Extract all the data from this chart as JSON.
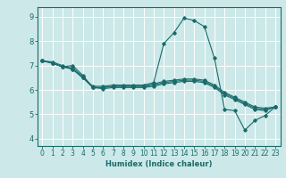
{
  "title": "",
  "xlabel": "Humidex (Indice chaleur)",
  "ylabel": "",
  "xlim": [
    -0.5,
    23.5
  ],
  "ylim": [
    3.7,
    9.4
  ],
  "bg_color": "#cce8e8",
  "line_color": "#1a6b6b",
  "grid_color": "#ffffff",
  "xticks": [
    0,
    1,
    2,
    3,
    4,
    5,
    6,
    7,
    8,
    9,
    10,
    11,
    12,
    13,
    14,
    15,
    16,
    17,
    18,
    19,
    20,
    21,
    22,
    23
  ],
  "yticks": [
    4,
    5,
    6,
    7,
    8,
    9
  ],
  "lines": [
    {
      "x": [
        0,
        1,
        2,
        3,
        4,
        5,
        6,
        7,
        8,
        9,
        10,
        11,
        12,
        13,
        14,
        15,
        16,
        17,
        18,
        19,
        20,
        21,
        22,
        23
      ],
      "y": [
        7.2,
        7.15,
        7.0,
        6.85,
        6.5,
        6.15,
        6.15,
        6.2,
        6.2,
        6.2,
        6.2,
        6.3,
        7.9,
        8.35,
        8.95,
        8.85,
        8.6,
        7.3,
        5.2,
        5.15,
        4.35,
        4.75,
        4.95,
        5.3
      ]
    },
    {
      "x": [
        0,
        1,
        2,
        3,
        4,
        5,
        6,
        7,
        8,
        9,
        10,
        11,
        12,
        13,
        14,
        15,
        16,
        17,
        18,
        19,
        20,
        21,
        22,
        23
      ],
      "y": [
        7.2,
        7.1,
        6.95,
        7.0,
        6.6,
        6.1,
        6.1,
        6.15,
        6.15,
        6.15,
        6.15,
        6.25,
        6.35,
        6.4,
        6.45,
        6.45,
        6.4,
        6.2,
        5.9,
        5.7,
        5.5,
        5.3,
        5.25,
        5.3
      ]
    },
    {
      "x": [
        0,
        1,
        2,
        3,
        4,
        5,
        6,
        7,
        8,
        9,
        10,
        11,
        12,
        13,
        14,
        15,
        16,
        17,
        18,
        19,
        20,
        21,
        22,
        23
      ],
      "y": [
        7.2,
        7.1,
        6.95,
        6.9,
        6.55,
        6.1,
        6.1,
        6.15,
        6.15,
        6.15,
        6.15,
        6.2,
        6.3,
        6.35,
        6.4,
        6.4,
        6.35,
        6.15,
        5.85,
        5.65,
        5.45,
        5.25,
        5.2,
        5.3
      ]
    },
    {
      "x": [
        0,
        1,
        2,
        3,
        4,
        5,
        6,
        7,
        8,
        9,
        10,
        11,
        12,
        13,
        14,
        15,
        16,
        17,
        18,
        19,
        20,
        21,
        22,
        23
      ],
      "y": [
        7.2,
        7.1,
        6.95,
        6.85,
        6.5,
        6.1,
        6.05,
        6.1,
        6.1,
        6.1,
        6.1,
        6.15,
        6.25,
        6.3,
        6.35,
        6.35,
        6.3,
        6.1,
        5.8,
        5.6,
        5.4,
        5.2,
        5.15,
        5.3
      ]
    }
  ],
  "tick_fontsize": 5.5,
  "xlabel_fontsize": 6.0,
  "marker": "D",
  "markersize": 1.8,
  "linewidth": 0.8
}
